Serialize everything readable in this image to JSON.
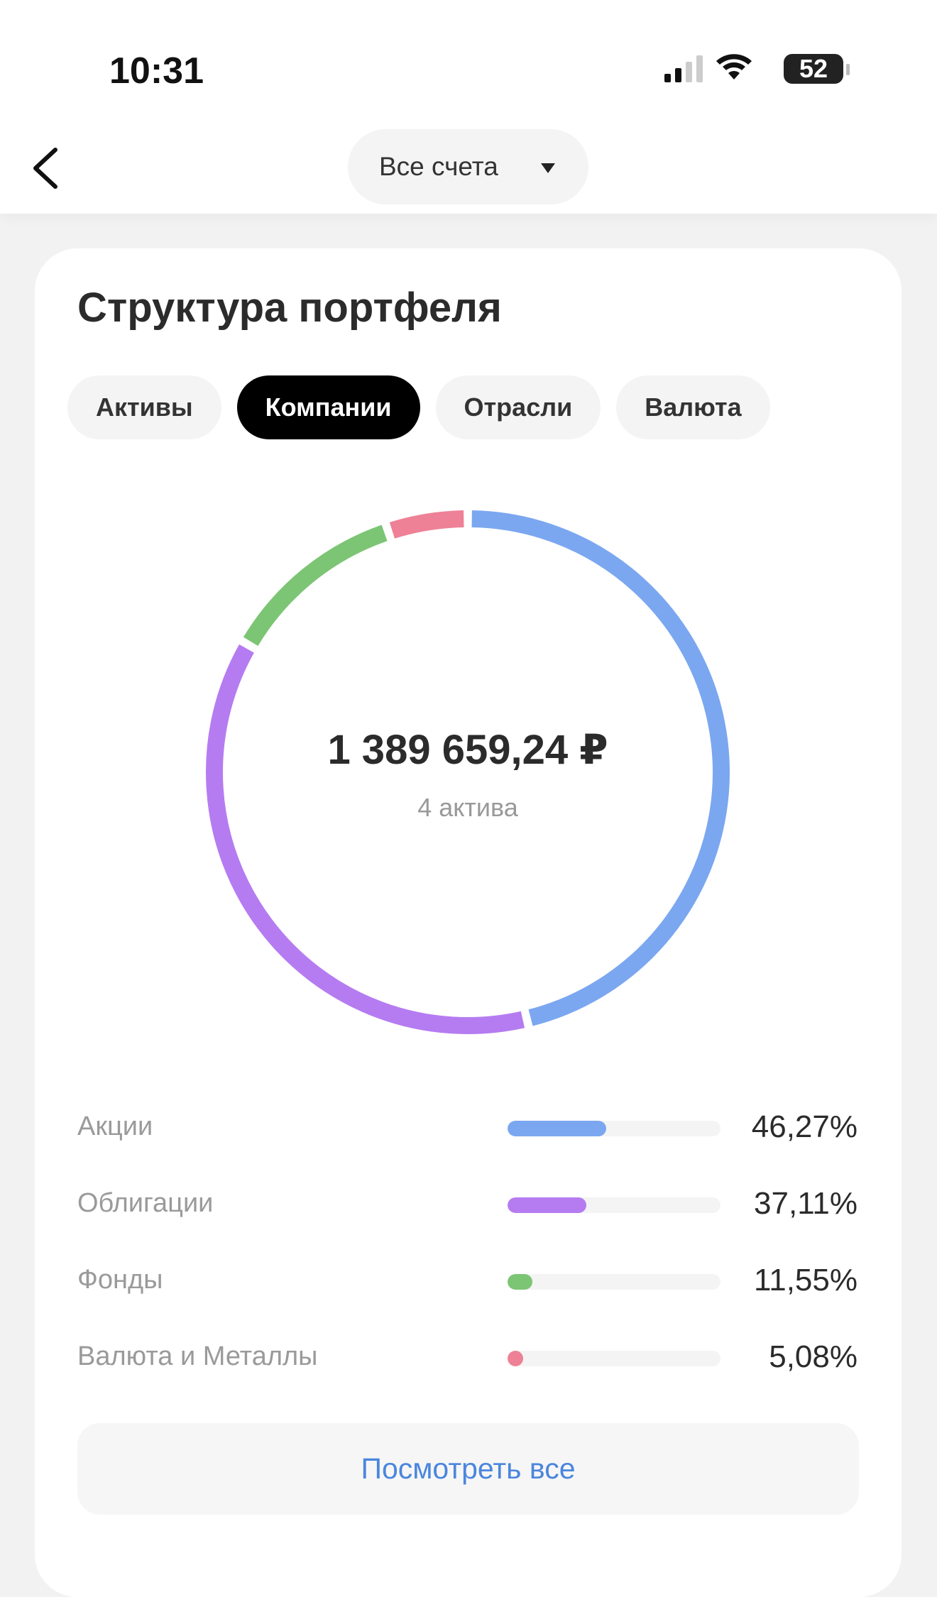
{
  "status_bar": {
    "time": "10:31",
    "battery": "52"
  },
  "nav": {
    "account_selector": "Все счета"
  },
  "card": {
    "title": "Структура портфеля",
    "tabs": [
      "Активы",
      "Компании",
      "Отрасли",
      "Валюта"
    ],
    "active_tab": 1,
    "total": "1 389 659,24 ₽",
    "asset_count": "4 актива",
    "button": "Посмотреть все"
  },
  "chart_data": {
    "type": "donut",
    "categories": [
      "Акции",
      "Облигации",
      "Фонды",
      "Валюта и Металлы"
    ],
    "values": [
      46.27,
      37.11,
      11.55,
      5.08
    ],
    "value_labels": [
      "46,27%",
      "37,11%",
      "11,55%",
      "5,08%"
    ],
    "colors": [
      "#7ba7f0",
      "#b57cf1",
      "#7cc574",
      "#ee8196"
    ]
  }
}
